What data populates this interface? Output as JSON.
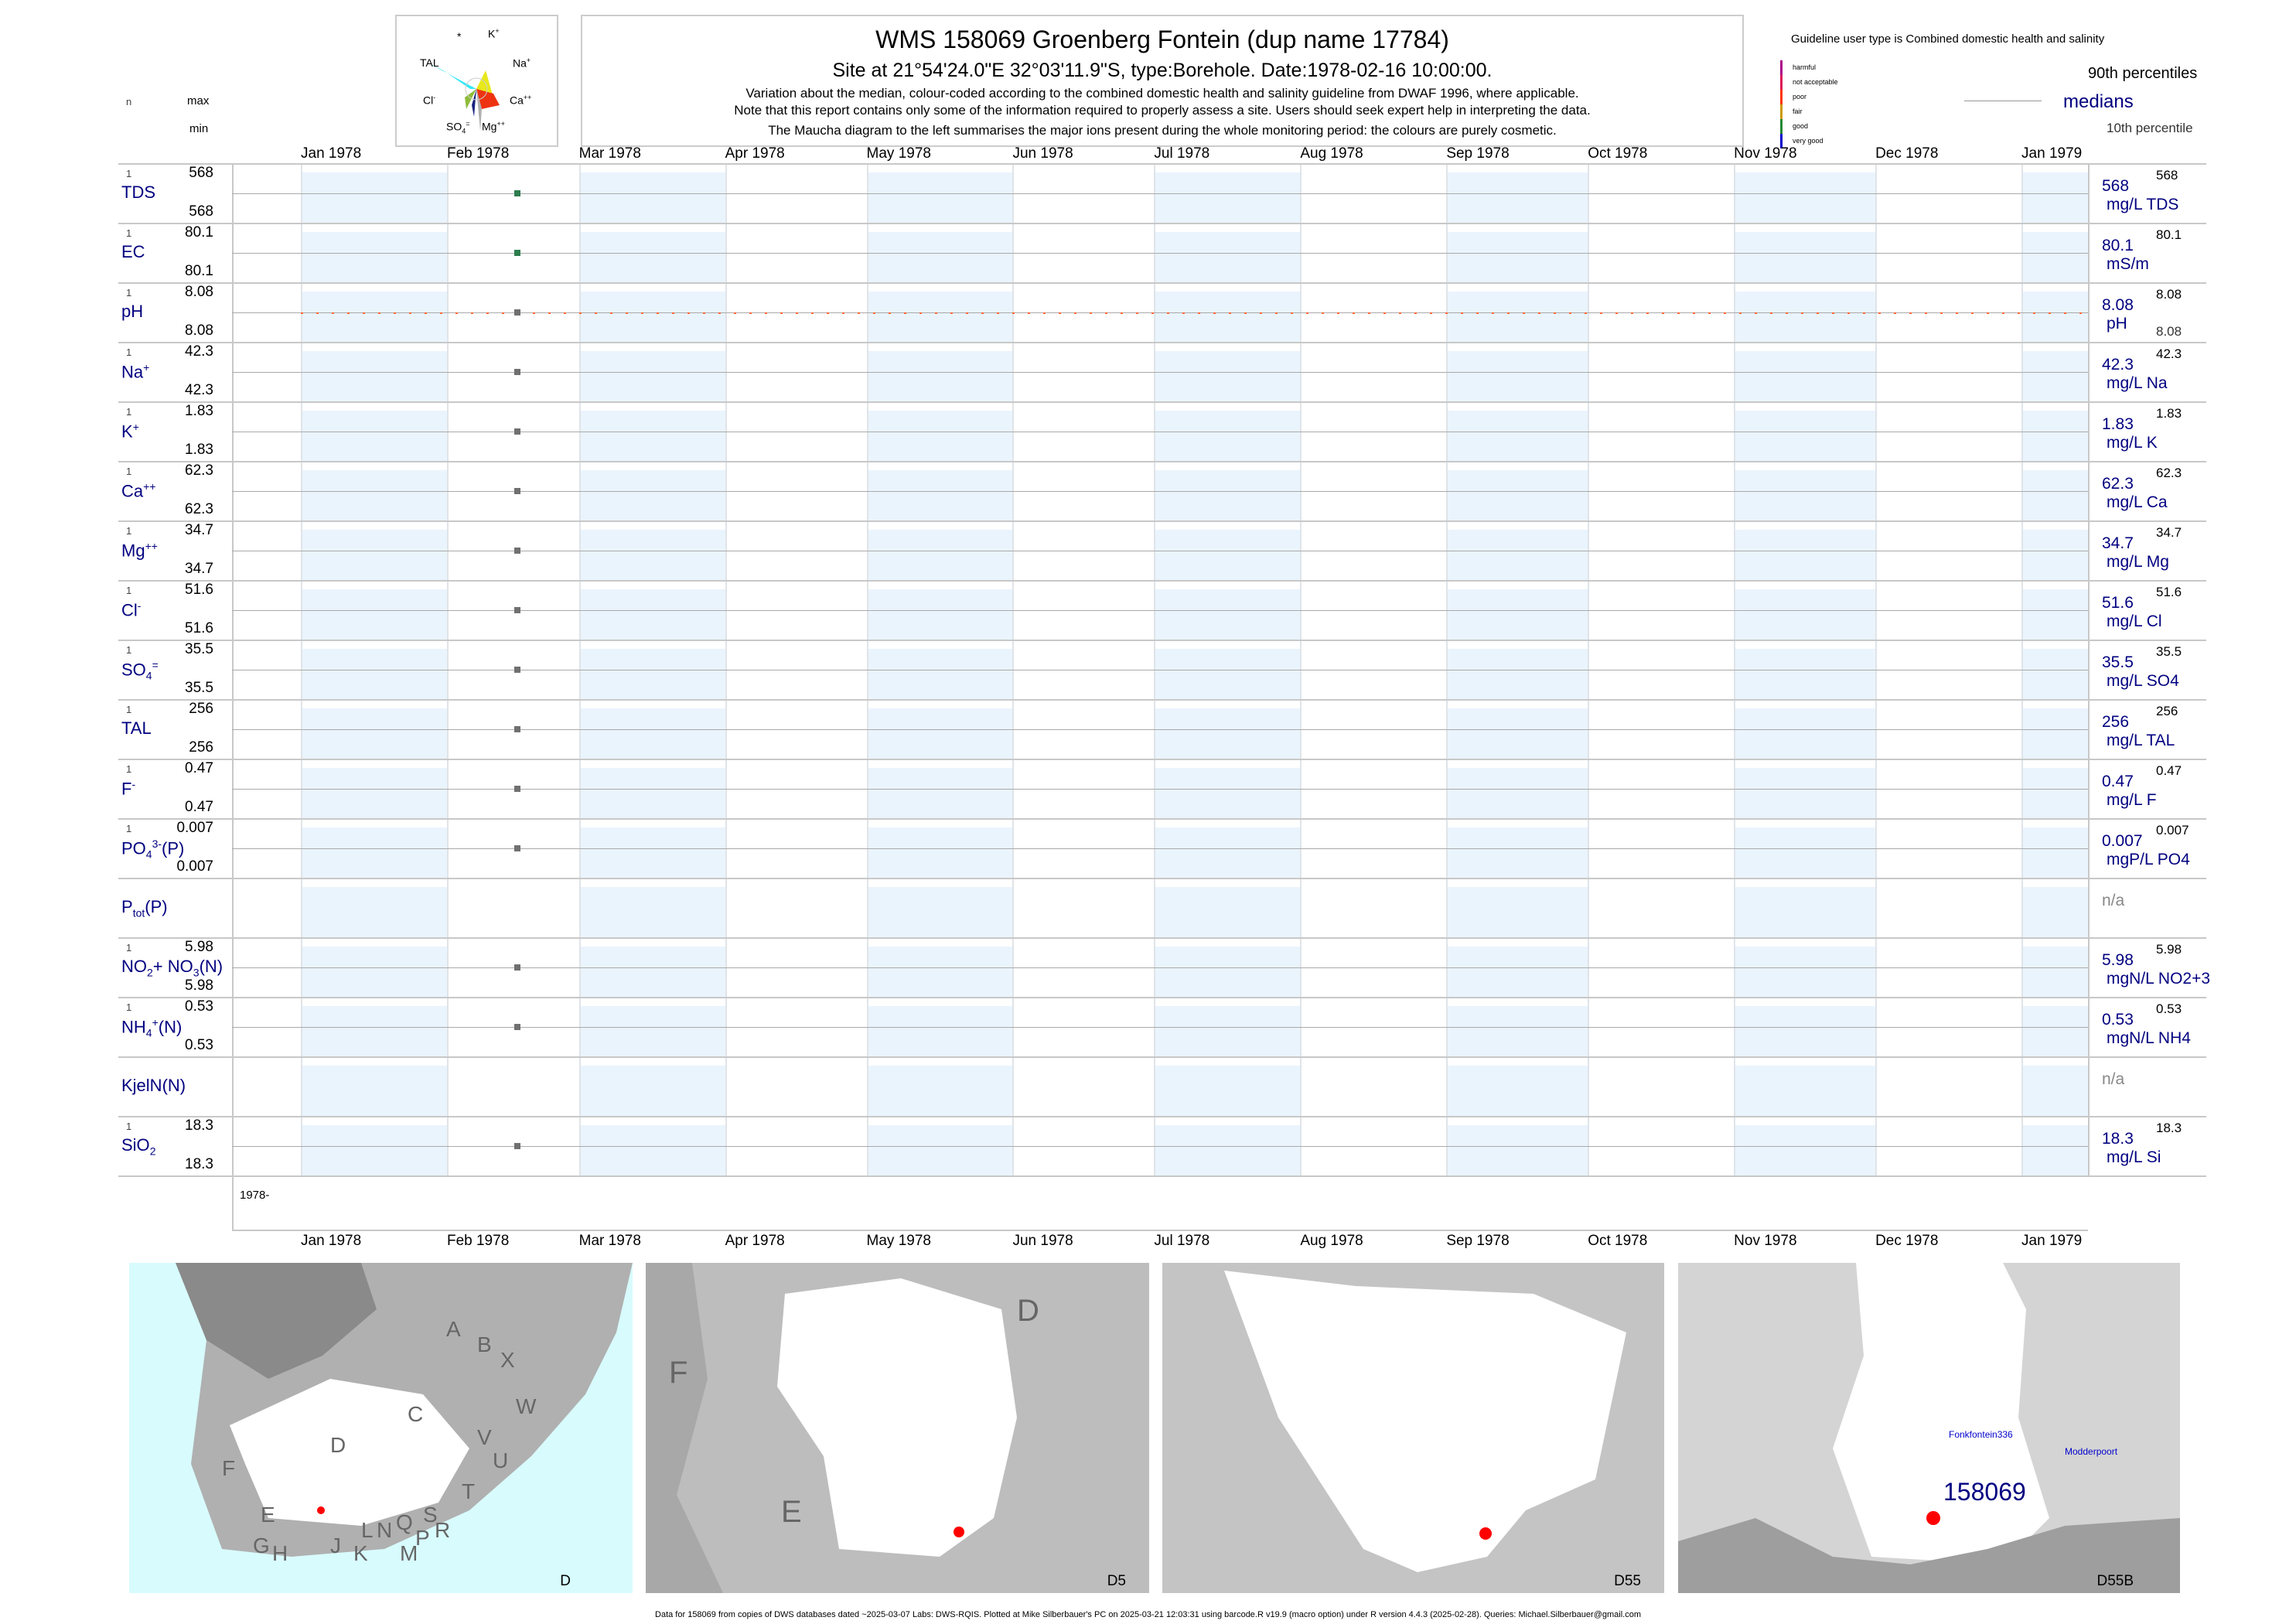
{
  "header": {
    "title": "WMS 158069  Groenberg Fontein (dup name 17784)",
    "subtitle": "Site at 21°54'24.0\"E 32°03'11.9\"S, type:Borehole. Date:1978-02-16 10:00:00.",
    "notes": [
      "Variation about the median,  colour-coded according to the combined domestic health and salinity guideline from DWAF 1996, where applicable.",
      "Note that this report contains only some of the information required to properly assess a site. Users should seek expert help in interpreting the data.",
      "The Maucha diagram to the left summarises the major ions present during the whole monitoring period: the colours are purely cosmetic."
    ]
  },
  "maucha": {
    "labels": {
      "star": "*",
      "k": "K",
      "k_sup": "+",
      "na": "Na",
      "na_sup": "+",
      "tal": "TAL",
      "ca": "Ca",
      "ca_sup": "++",
      "cl": "Cl",
      "cl_sup": "-",
      "so4": "SO",
      "so4_sub": "4",
      "so4_sup": "=",
      "mg": "Mg",
      "mg_sup": "++"
    },
    "colors": {
      "tal": "#33e8f5",
      "na": "#e8e81a",
      "ca": "#ee3311",
      "mg": "#b0b0b0",
      "so4": "#1a237e",
      "cl": "#8fbc3a",
      "k": "#ffffff"
    }
  },
  "legend": {
    "guideline": "Guideline user type is Combined domestic health and salinity",
    "classes": [
      {
        "label": "harmful",
        "color": "#aa0088"
      },
      {
        "label": "not acceptable",
        "color": "#dd1155"
      },
      {
        "label": "poor",
        "color": "#ff3300"
      },
      {
        "label": "fair",
        "color": "#cc9900"
      },
      {
        "label": "good",
        "color": "#228833"
      },
      {
        "label": "very good",
        "color": "#0000cc"
      }
    ],
    "p90": "90th percentiles",
    "median": "medians",
    "p10": "10th percentile"
  },
  "col_headers": {
    "n": "n",
    "max": "max",
    "min": "min"
  },
  "chart_data": {
    "type": "scatter",
    "x_axis": {
      "start": "1978-01-01",
      "end": "1979-01-15",
      "tick_labels": [
        "Jan 1978",
        "Feb 1978",
        "Mar 1978",
        "Apr 1978",
        "May 1978",
        "Jun 1978",
        "Jul 1978",
        "Aug 1978",
        "Sep 1978",
        "Oct 1978",
        "Nov 1978",
        "Dec 1978",
        "Jan 1979"
      ]
    },
    "year_label": "1978-",
    "sample_date": "1978-02-16",
    "rows": [
      {
        "label": [
          {
            "t": "TDS"
          }
        ],
        "n": "1",
        "max": "568",
        "min": "568",
        "median": "568",
        "unit": "mg/L TDS",
        "p90": "568",
        "p10": "",
        "value": 568,
        "color": "#2e7d4f"
      },
      {
        "label": [
          {
            "t": "EC"
          }
        ],
        "n": "1",
        "max": "80.1",
        "min": "80.1",
        "median": "80.1",
        "unit": "mS/m",
        "p90": "80.1",
        "p10": "",
        "value": 80.1,
        "color": "#2e7d4f"
      },
      {
        "label": [
          {
            "t": "pH"
          }
        ],
        "n": "1",
        "max": "8.08",
        "min": "8.08",
        "median": "8.08",
        "unit": "pH",
        "p90": "8.08",
        "p10": "8.08",
        "value": 8.08,
        "color": "#707070",
        "dotted": "#ff6633"
      },
      {
        "label": [
          {
            "t": "Na"
          },
          {
            "t": "+",
            "s": "sup"
          }
        ],
        "n": "1",
        "max": "42.3",
        "min": "42.3",
        "median": "42.3",
        "unit": "mg/L Na",
        "p90": "42.3",
        "p10": "",
        "value": 42.3,
        "color": "#707070"
      },
      {
        "label": [
          {
            "t": "K"
          },
          {
            "t": "+",
            "s": "sup"
          }
        ],
        "n": "1",
        "max": "1.83",
        "min": "1.83",
        "median": "1.83",
        "unit": "mg/L K",
        "p90": "1.83",
        "p10": "",
        "value": 1.83,
        "color": "#707070"
      },
      {
        "label": [
          {
            "t": "Ca"
          },
          {
            "t": "++",
            "s": "sup"
          }
        ],
        "n": "1",
        "max": "62.3",
        "min": "62.3",
        "median": "62.3",
        "unit": "mg/L Ca",
        "p90": "62.3",
        "p10": "",
        "value": 62.3,
        "color": "#707070"
      },
      {
        "label": [
          {
            "t": "Mg"
          },
          {
            "t": "++",
            "s": "sup"
          }
        ],
        "n": "1",
        "max": "34.7",
        "min": "34.7",
        "median": "34.7",
        "unit": "mg/L Mg",
        "p90": "34.7",
        "p10": "",
        "value": 34.7,
        "color": "#707070"
      },
      {
        "label": [
          {
            "t": "Cl"
          },
          {
            "t": "-",
            "s": "sup"
          }
        ],
        "n": "1",
        "max": "51.6",
        "min": "51.6",
        "median": "51.6",
        "unit": "mg/L Cl",
        "p90": "51.6",
        "p10": "",
        "value": 51.6,
        "color": "#707070"
      },
      {
        "label": [
          {
            "t": "SO"
          },
          {
            "t": "4",
            "s": "sub"
          },
          {
            "t": "=",
            "s": "sup"
          }
        ],
        "n": "1",
        "max": "35.5",
        "min": "35.5",
        "median": "35.5",
        "unit": "mg/L SO4",
        "p90": "35.5",
        "p10": "",
        "value": 35.5,
        "color": "#707070"
      },
      {
        "label": [
          {
            "t": "TAL"
          }
        ],
        "n": "1",
        "max": "256",
        "min": "256",
        "median": "256",
        "unit": "mg/L TAL",
        "p90": "256",
        "p10": "",
        "value": 256,
        "color": "#707070"
      },
      {
        "label": [
          {
            "t": "F"
          },
          {
            "t": "-",
            "s": "sup"
          }
        ],
        "n": "1",
        "max": "0.47",
        "min": "0.47",
        "median": "0.47",
        "unit": "mg/L F",
        "p90": "0.47",
        "p10": "",
        "value": 0.47,
        "color": "#707070"
      },
      {
        "label": [
          {
            "t": "PO"
          },
          {
            "t": "4",
            "s": "sub"
          },
          {
            "t": "3-",
            "s": "sup"
          },
          {
            "t": "(P)"
          }
        ],
        "n": "1",
        "max": "0.007",
        "min": "0.007",
        "median": "0.007",
        "unit": "mgP/L PO4",
        "p90": "0.007",
        "p10": "",
        "value": 0.007,
        "color": "#707070"
      },
      {
        "label": [
          {
            "t": "P"
          },
          {
            "t": "tot",
            "s": "sub"
          },
          {
            "t": "(P)"
          }
        ],
        "n": "",
        "max": "",
        "min": "",
        "median": "n/a",
        "unit": "",
        "p90": "",
        "p10": "",
        "value": null,
        "color": "#707070"
      },
      {
        "label": [
          {
            "t": "NO"
          },
          {
            "t": "2",
            "s": "sub"
          },
          {
            "t": "+ NO"
          },
          {
            "t": "3",
            "s": "sub"
          },
          {
            "t": "(N)"
          }
        ],
        "n": "1",
        "max": "5.98",
        "min": "5.98",
        "median": "5.98",
        "unit": "mgN/L NO2+3",
        "p90": "5.98",
        "p10": "",
        "value": 5.98,
        "color": "#707070"
      },
      {
        "label": [
          {
            "t": "NH"
          },
          {
            "t": "4",
            "s": "sub"
          },
          {
            "t": "+",
            "s": "sup"
          },
          {
            "t": "(N)"
          }
        ],
        "n": "1",
        "max": "0.53",
        "min": "0.53",
        "median": "0.53",
        "unit": "mgN/L NH4",
        "p90": "0.53",
        "p10": "",
        "value": 0.53,
        "color": "#707070"
      },
      {
        "label": [
          {
            "t": "KjelN(N)"
          }
        ],
        "n": "",
        "max": "",
        "min": "",
        "median": "n/a",
        "unit": "",
        "p90": "",
        "p10": "",
        "value": null,
        "color": "#707070"
      },
      {
        "label": [
          {
            "t": "SiO"
          },
          {
            "t": "2",
            "s": "sub"
          }
        ],
        "n": "1",
        "max": "18.3",
        "min": "18.3",
        "median": "18.3",
        "unit": "mg/L Si",
        "p90": "18.3",
        "p10": "",
        "value": 18.3,
        "color": "#707070"
      }
    ]
  },
  "maps": [
    {
      "caption": "D",
      "labels": [
        "A",
        "B",
        "X",
        "C",
        "W",
        "V",
        "U",
        "D",
        "T",
        "F",
        "E",
        "S",
        "R",
        "N",
        "Q",
        "L",
        "P",
        "M",
        "J",
        "K",
        "G",
        "H"
      ]
    },
    {
      "caption": "D5",
      "labels": [
        "D",
        "F",
        "E"
      ]
    },
    {
      "caption": "D55",
      "labels": []
    },
    {
      "caption": "D55B",
      "labels": [
        "Fonkfontein336",
        "Modderpoort",
        "158069"
      ]
    }
  ],
  "footer": "Data for 158069 from copies of DWS databases dated ~2025-03-07 Labs: DWS-RQIS. Plotted at Mike Silberbauer's PC on 2025-03-21 12:03:31 using barcode.R v19.9 (macro option) under R version 4.4.3 (2025-02-28). Queries: Michael.Silberbauer@gmail.com"
}
